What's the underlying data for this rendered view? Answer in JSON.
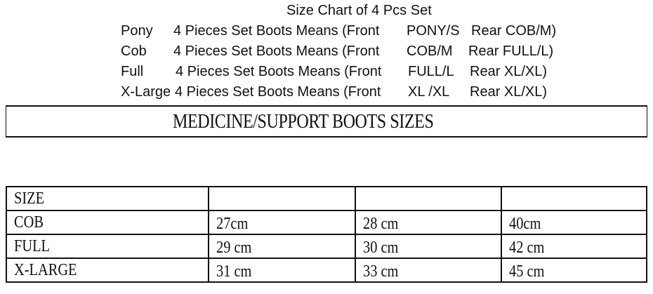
{
  "title": "Size Chart of 4 Pcs Set",
  "lines": [
    {
      "size": "Pony",
      "text": "4 Pieces Set Boots Means (Front",
      "front": "PONY/S",
      "rear": "Rear COB/M)"
    },
    {
      "size": "Cob",
      "text": "4 Pieces Set Boots Means (Front",
      "front": "COB/M",
      "rear": "Rear FULL/L)"
    },
    {
      "size": "Full",
      "text": "4 Pieces Set Boots Means (Front",
      "front": "FULL/L",
      "rear": "Rear XL/XL)"
    },
    {
      "size": "X-Large",
      "text": "4 Pieces Set Boots Means (Front",
      "front": "XL /XL",
      "rear": "Rear XL/XL)"
    }
  ],
  "banner": "MEDICINE/SUPPORT BOOTS SIZES",
  "table": {
    "header": [
      "SIZE",
      "",
      "",
      ""
    ],
    "rows": [
      [
        "COB",
        "27cm",
        "28 cm",
        "40cm"
      ],
      [
        "FULL",
        "29 cm",
        "30 cm",
        "42 cm"
      ],
      [
        "X-LARGE",
        "31 cm",
        "33 cm",
        "45 cm"
      ]
    ]
  }
}
